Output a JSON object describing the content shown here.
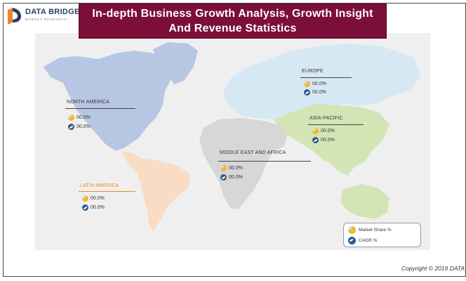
{
  "brand": {
    "name": "DATA BRIDGE",
    "tagline": "MARKET RESEARCH"
  },
  "title": {
    "line1": "In-depth Business Growth Analysis, Growth Insight",
    "line2": "And Revenue Statistics"
  },
  "regions": {
    "north_america": {
      "name": "NORTH AMERICA",
      "market_share": "00.0%",
      "cagr": "00.0%"
    },
    "europe": {
      "name": "EUROPE",
      "market_share": "00.0%",
      "cagr": "00.0%"
    },
    "asia_pacific": {
      "name": "ASIA-PACIFIC",
      "market_share": "00.0%",
      "cagr": "00.0%"
    },
    "middle_east_africa": {
      "name": "MIDDLE EAST AND AFRICA",
      "market_share": "00.0%",
      "cagr": "00.0%"
    },
    "latin_america": {
      "name": "LATIN AMERICA",
      "market_share": "00.0%",
      "cagr": "00.0%"
    }
  },
  "legend": {
    "market_share": "Market Share %",
    "cagr": "CAGR %"
  },
  "copyright": "Copyright © 2019 DATA",
  "colors": {
    "banner": "#7b0f3a",
    "north_america": "#b7c7e3",
    "europe": "#d6e8f3",
    "asia_pacific": "#d3e5b5",
    "middle_east_africa": "#d7d7d7",
    "latin_america": "#f8dcc4",
    "market_share_icon": "#f1b92a",
    "cagr_icon": "#2e5d87"
  },
  "icons": {
    "market_share": "pie-chart-icon",
    "cagr": "trend-chart-icon"
  }
}
